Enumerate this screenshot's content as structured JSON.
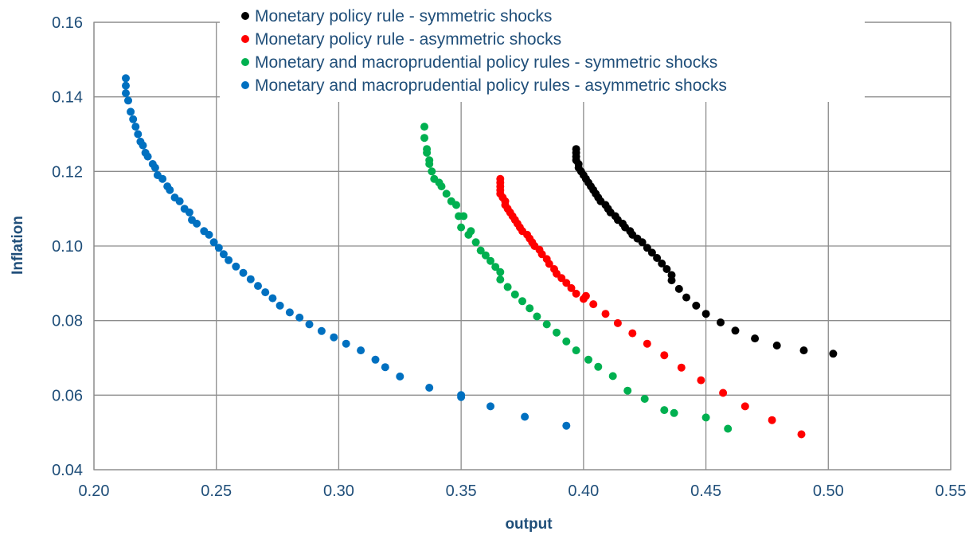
{
  "chart_data": {
    "type": "scatter",
    "title": "",
    "xlabel": "output",
    "ylabel": "Inflation",
    "xlim": [
      0.2,
      0.55
    ],
    "ylim": [
      0.04,
      0.16
    ],
    "xticks": [
      "0.20",
      "0.25",
      "0.30",
      "0.35",
      "0.40",
      "0.45",
      "0.50",
      "0.55"
    ],
    "yticks": [
      "0.04",
      "0.06",
      "0.08",
      "0.10",
      "0.12",
      "0.14",
      "0.16"
    ],
    "grid": true,
    "legend_position": "top-center",
    "series": [
      {
        "name": "Monetary policy rule - symmetric shocks",
        "color": "#000000",
        "points": [
          [
            0.397,
            0.126
          ],
          [
            0.397,
            0.125
          ],
          [
            0.397,
            0.124
          ],
          [
            0.397,
            0.123
          ],
          [
            0.398,
            0.122
          ],
          [
            0.398,
            0.121
          ],
          [
            0.399,
            0.12
          ],
          [
            0.4,
            0.119
          ],
          [
            0.401,
            0.118
          ],
          [
            0.402,
            0.117
          ],
          [
            0.403,
            0.116
          ],
          [
            0.404,
            0.115
          ],
          [
            0.405,
            0.114
          ],
          [
            0.406,
            0.113
          ],
          [
            0.407,
            0.112
          ],
          [
            0.409,
            0.111
          ],
          [
            0.41,
            0.11
          ],
          [
            0.411,
            0.109
          ],
          [
            0.413,
            0.108
          ],
          [
            0.414,
            0.107
          ],
          [
            0.416,
            0.106
          ],
          [
            0.417,
            0.105
          ],
          [
            0.419,
            0.104
          ],
          [
            0.42,
            0.103
          ],
          [
            0.422,
            0.102
          ],
          [
            0.424,
            0.101
          ],
          [
            0.426,
            0.0995
          ],
          [
            0.428,
            0.0982
          ],
          [
            0.43,
            0.0968
          ],
          [
            0.432,
            0.0953
          ],
          [
            0.434,
            0.0938
          ],
          [
            0.436,
            0.0922
          ],
          [
            0.436,
            0.0908
          ],
          [
            0.439,
            0.0885
          ],
          [
            0.442,
            0.0862
          ],
          [
            0.446,
            0.084
          ],
          [
            0.45,
            0.0818
          ],
          [
            0.456,
            0.0795
          ],
          [
            0.462,
            0.0773
          ],
          [
            0.47,
            0.0752
          ],
          [
            0.479,
            0.0733
          ],
          [
            0.49,
            0.072
          ],
          [
            0.502,
            0.0711
          ]
        ]
      },
      {
        "name": "Monetary policy rule - asymmetric shocks",
        "color": "#ff0000",
        "points": [
          [
            0.366,
            0.118
          ],
          [
            0.366,
            0.117
          ],
          [
            0.366,
            0.116
          ],
          [
            0.366,
            0.115
          ],
          [
            0.366,
            0.114
          ],
          [
            0.367,
            0.113
          ],
          [
            0.368,
            0.112
          ],
          [
            0.368,
            0.111
          ],
          [
            0.369,
            0.11
          ],
          [
            0.37,
            0.109
          ],
          [
            0.371,
            0.108
          ],
          [
            0.372,
            0.107
          ],
          [
            0.373,
            0.106
          ],
          [
            0.374,
            0.105
          ],
          [
            0.375,
            0.104
          ],
          [
            0.377,
            0.103
          ],
          [
            0.378,
            0.102
          ],
          [
            0.379,
            0.101
          ],
          [
            0.38,
            0.1
          ],
          [
            0.382,
            0.099
          ],
          [
            0.383,
            0.0978
          ],
          [
            0.385,
            0.0965
          ],
          [
            0.386,
            0.0952
          ],
          [
            0.388,
            0.0938
          ],
          [
            0.389,
            0.0926
          ],
          [
            0.391,
            0.0914
          ],
          [
            0.393,
            0.0901
          ],
          [
            0.395,
            0.0887
          ],
          [
            0.397,
            0.0872
          ],
          [
            0.4,
            0.0858
          ],
          [
            0.401,
            0.0866
          ],
          [
            0.404,
            0.0844
          ],
          [
            0.409,
            0.0818
          ],
          [
            0.414,
            0.0793
          ],
          [
            0.42,
            0.0766
          ],
          [
            0.426,
            0.0738
          ],
          [
            0.433,
            0.0707
          ],
          [
            0.44,
            0.0674
          ],
          [
            0.448,
            0.064
          ],
          [
            0.457,
            0.0606
          ],
          [
            0.466,
            0.057
          ],
          [
            0.477,
            0.0533
          ],
          [
            0.489,
            0.0495
          ]
        ]
      },
      {
        "name": "Monetary and macroprudential policy rules - symmetric shocks",
        "color": "#00b050",
        "points": [
          [
            0.335,
            0.132
          ],
          [
            0.335,
            0.129
          ],
          [
            0.336,
            0.126
          ],
          [
            0.336,
            0.125
          ],
          [
            0.337,
            0.123
          ],
          [
            0.337,
            0.122
          ],
          [
            0.338,
            0.12
          ],
          [
            0.339,
            0.118
          ],
          [
            0.341,
            0.117
          ],
          [
            0.342,
            0.116
          ],
          [
            0.344,
            0.114
          ],
          [
            0.346,
            0.112
          ],
          [
            0.348,
            0.111
          ],
          [
            0.349,
            0.108
          ],
          [
            0.351,
            0.108
          ],
          [
            0.35,
            0.105
          ],
          [
            0.353,
            0.103
          ],
          [
            0.354,
            0.104
          ],
          [
            0.356,
            0.101
          ],
          [
            0.358,
            0.0988
          ],
          [
            0.36,
            0.0975
          ],
          [
            0.362,
            0.096
          ],
          [
            0.364,
            0.0944
          ],
          [
            0.366,
            0.093
          ],
          [
            0.366,
            0.091
          ],
          [
            0.369,
            0.089
          ],
          [
            0.372,
            0.087
          ],
          [
            0.375,
            0.0852
          ],
          [
            0.378,
            0.0833
          ],
          [
            0.381,
            0.0811
          ],
          [
            0.385,
            0.079
          ],
          [
            0.389,
            0.0768
          ],
          [
            0.393,
            0.0744
          ],
          [
            0.397,
            0.072
          ],
          [
            0.402,
            0.0695
          ],
          [
            0.406,
            0.0676
          ],
          [
            0.412,
            0.0651
          ],
          [
            0.418,
            0.0612
          ],
          [
            0.425,
            0.059
          ],
          [
            0.433,
            0.056
          ],
          [
            0.437,
            0.0552
          ],
          [
            0.45,
            0.054
          ],
          [
            0.459,
            0.051
          ]
        ]
      },
      {
        "name": "Monetary and macroprudential policy rules - asymmetric shocks",
        "color": "#0070c0",
        "points": [
          [
            0.213,
            0.145
          ],
          [
            0.213,
            0.143
          ],
          [
            0.213,
            0.141
          ],
          [
            0.214,
            0.139
          ],
          [
            0.215,
            0.136
          ],
          [
            0.216,
            0.134
          ],
          [
            0.217,
            0.132
          ],
          [
            0.218,
            0.13
          ],
          [
            0.219,
            0.128
          ],
          [
            0.22,
            0.127
          ],
          [
            0.221,
            0.125
          ],
          [
            0.222,
            0.124
          ],
          [
            0.224,
            0.122
          ],
          [
            0.225,
            0.121
          ],
          [
            0.226,
            0.119
          ],
          [
            0.228,
            0.118
          ],
          [
            0.23,
            0.116
          ],
          [
            0.231,
            0.115
          ],
          [
            0.233,
            0.113
          ],
          [
            0.235,
            0.112
          ],
          [
            0.237,
            0.11
          ],
          [
            0.239,
            0.109
          ],
          [
            0.24,
            0.107
          ],
          [
            0.242,
            0.106
          ],
          [
            0.245,
            0.104
          ],
          [
            0.247,
            0.103
          ],
          [
            0.249,
            0.101
          ],
          [
            0.251,
            0.0995
          ],
          [
            0.253,
            0.0978
          ],
          [
            0.255,
            0.0962
          ],
          [
            0.258,
            0.0945
          ],
          [
            0.261,
            0.0928
          ],
          [
            0.264,
            0.0911
          ],
          [
            0.267,
            0.0893
          ],
          [
            0.27,
            0.0876
          ],
          [
            0.273,
            0.086
          ],
          [
            0.276,
            0.084
          ],
          [
            0.28,
            0.0822
          ],
          [
            0.284,
            0.0808
          ],
          [
            0.288,
            0.079
          ],
          [
            0.293,
            0.0772
          ],
          [
            0.298,
            0.0755
          ],
          [
            0.303,
            0.0738
          ],
          [
            0.309,
            0.072
          ],
          [
            0.315,
            0.0695
          ],
          [
            0.319,
            0.0675
          ],
          [
            0.325,
            0.065
          ],
          [
            0.337,
            0.062
          ],
          [
            0.35,
            0.06
          ],
          [
            0.35,
            0.0595
          ],
          [
            0.362,
            0.057
          ],
          [
            0.376,
            0.0542
          ],
          [
            0.393,
            0.0518
          ]
        ]
      }
    ]
  }
}
